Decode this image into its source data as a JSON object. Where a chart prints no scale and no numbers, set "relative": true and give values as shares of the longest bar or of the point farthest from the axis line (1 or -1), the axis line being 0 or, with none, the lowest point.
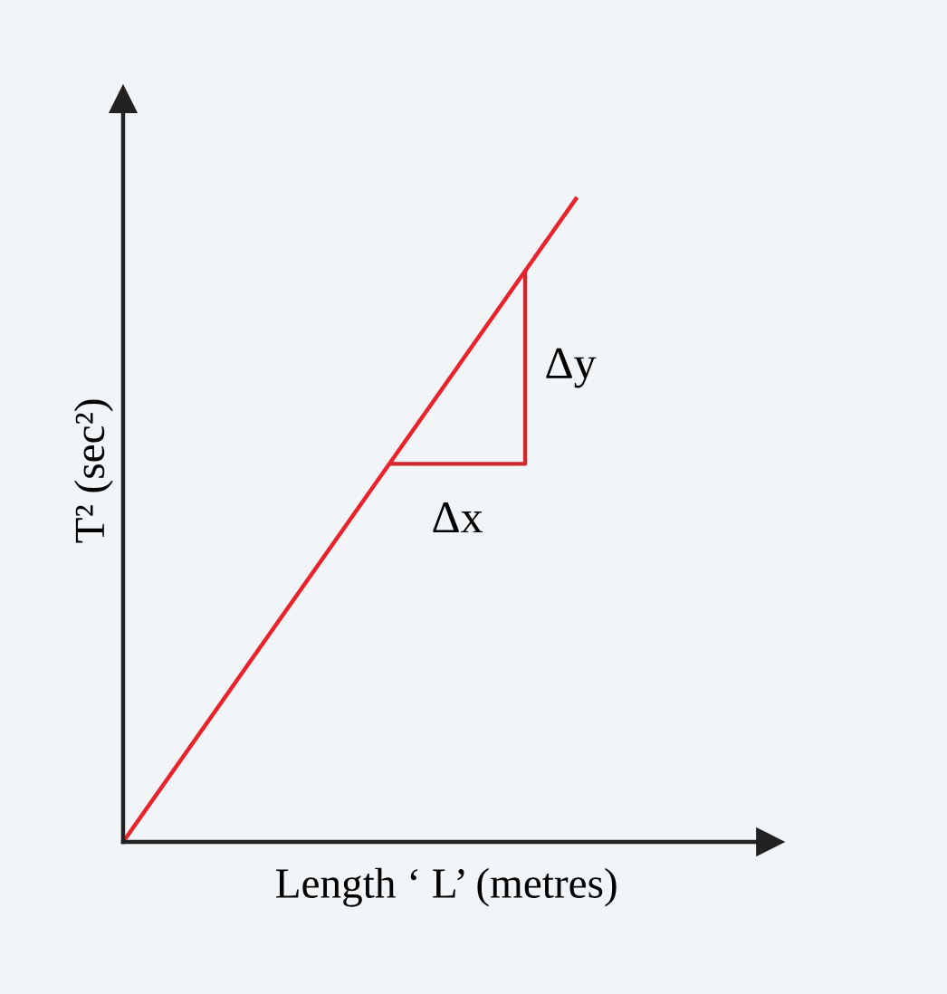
{
  "chart_data": {
    "type": "line",
    "relative": true,
    "xlabel": "Length ‘ L’ (metres)",
    "ylabel": "T² (sec²)",
    "categories": [
      null,
      null
    ],
    "series": [
      {
        "color": "#e8232c",
        "values": [
          0,
          1
        ]
      }
    ],
    "annotations": [
      "Δx",
      "Δy"
    ],
    "grid": false,
    "legend": false,
    "marker": "none",
    "line_style": "solid"
  }
}
